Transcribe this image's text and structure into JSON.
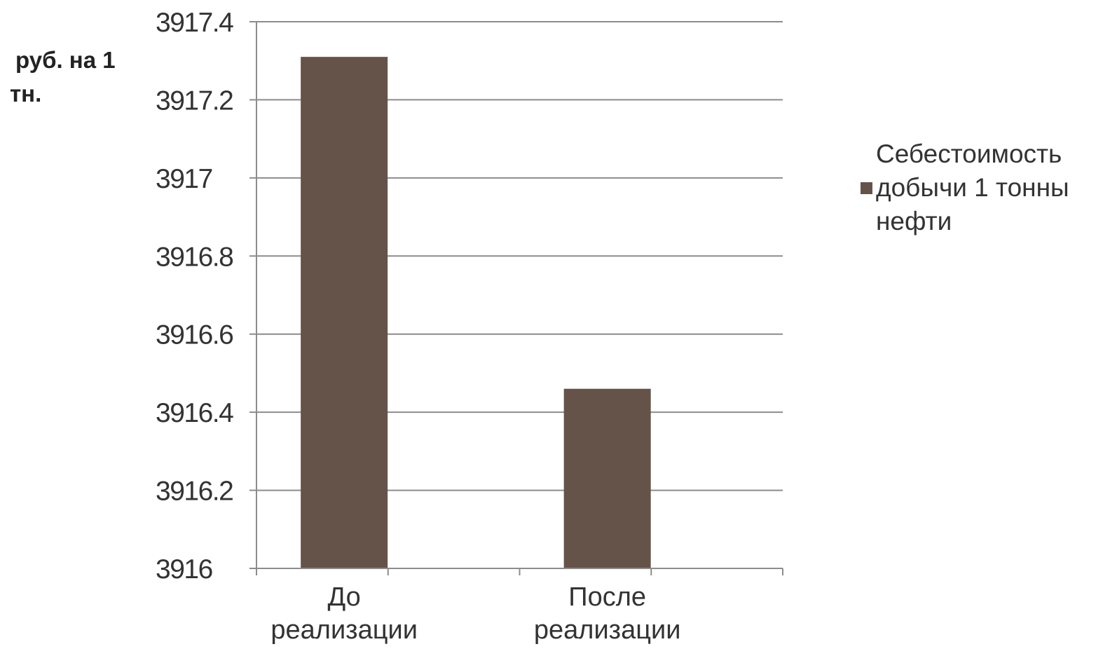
{
  "chart_data": {
    "type": "bar",
    "categories": [
      "До реализации",
      "После реализации"
    ],
    "series": [
      {
        "name": "Себестоимость добычи 1 тонны нефти",
        "values": [
          3917.31,
          3916.46
        ],
        "color": "#655349"
      }
    ],
    "title": "",
    "xlabel": "",
    "ylabel": "руб. на 1 тн.",
    "ylim": [
      3916,
      3917.4
    ],
    "yticks": [
      "3916",
      "3916.2",
      "3916.4",
      "3916.6",
      "3916.8",
      "3917",
      "3917.2",
      "3917.4"
    ],
    "grid": true,
    "legend_position": "right"
  }
}
